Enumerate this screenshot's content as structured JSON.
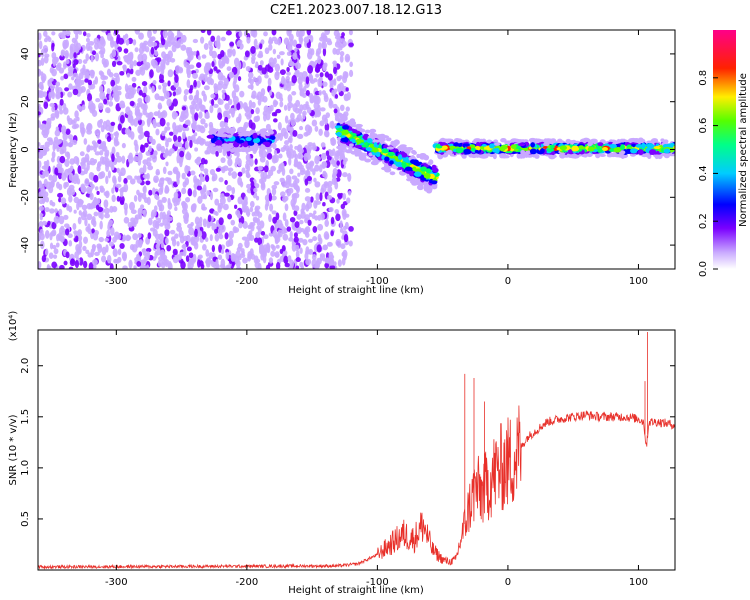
{
  "title": "C2E1.2023.007.18.12.G13",
  "chart_data": [
    {
      "type": "heatmap",
      "xlabel": "Height of straight line (km)",
      "ylabel": "Frequency (Hz)",
      "xlim": [
        -360,
        128
      ],
      "ylim": [
        -50,
        50
      ],
      "xticks": [
        "-300",
        "-200",
        "-100",
        "0",
        "100"
      ],
      "yticks": [
        "-40",
        "-20",
        "0",
        "20",
        "40"
      ],
      "colorbar": {
        "label": "Normalized spectral amplitude",
        "ticks": [
          "0.0",
          "0.2",
          "0.4",
          "0.6",
          "0.8"
        ],
        "range": [
          0,
          1
        ],
        "colormap": [
          "#ffffff",
          "#c9a9ff",
          "#7a00ff",
          "#0000ff",
          "#00ccff",
          "#00ff66",
          "#66ff00",
          "#ffee00",
          "#ff2200",
          "#ff0088"
        ]
      },
      "regions": [
        {
          "x_range": [
            -360,
            -120
          ],
          "y_range": [
            -50,
            50
          ],
          "description_level": 0.25
        },
        {
          "x_range": [
            -228,
            -180
          ],
          "y_center": 4,
          "amplitude": 0.45
        },
        {
          "x_range": [
            -130,
            -55
          ],
          "y_center_from": 8,
          "y_center_to": -12,
          "amplitude": 0.75
        },
        {
          "x_range": [
            -55,
            128
          ],
          "y_center": 0.5,
          "amplitude": 0.85
        }
      ]
    },
    {
      "type": "line",
      "xlabel": "Height of straight line (km)",
      "ylabel": "SNR (10 * v/v)",
      "multiplier": "(x10⁴)",
      "xlim": [
        -360,
        128
      ],
      "ylim": [
        0,
        2.35
      ],
      "xticks": [
        "-300",
        "-200",
        "-100",
        "0",
        "100"
      ],
      "yticks": [
        "0.5",
        "1.0",
        "1.5",
        "2.0"
      ],
      "color": "#e8302a",
      "keypoints": {
        "x": [
          -360,
          -130,
          -115,
          -100,
          -90,
          -80,
          -72,
          -65,
          -58,
          -50,
          -45,
          -40,
          -35,
          -30,
          -25,
          -20,
          -15,
          -10,
          -5,
          0,
          5,
          10,
          15,
          20,
          25,
          30,
          40,
          50,
          60,
          70,
          80,
          90,
          100,
          104,
          106,
          108,
          115,
          128
        ],
        "y": [
          0.03,
          0.04,
          0.06,
          0.15,
          0.25,
          0.35,
          0.3,
          0.45,
          0.2,
          0.1,
          0.08,
          0.1,
          0.35,
          0.6,
          0.8,
          0.75,
          0.85,
          0.95,
          1.0,
          1.05,
          1.1,
          1.2,
          1.3,
          1.35,
          1.4,
          1.45,
          1.48,
          1.5,
          1.52,
          1.5,
          1.5,
          1.5,
          1.48,
          1.45,
          1.2,
          1.45,
          1.45,
          1.42
        ]
      },
      "spikes": [
        {
          "x": -33,
          "y": 1.92
        },
        {
          "x": -26,
          "y": 1.88
        },
        {
          "x": -18,
          "y": 1.65
        },
        {
          "x": 107,
          "y": 2.33
        },
        {
          "x": 105,
          "y": 1.85
        }
      ]
    }
  ]
}
